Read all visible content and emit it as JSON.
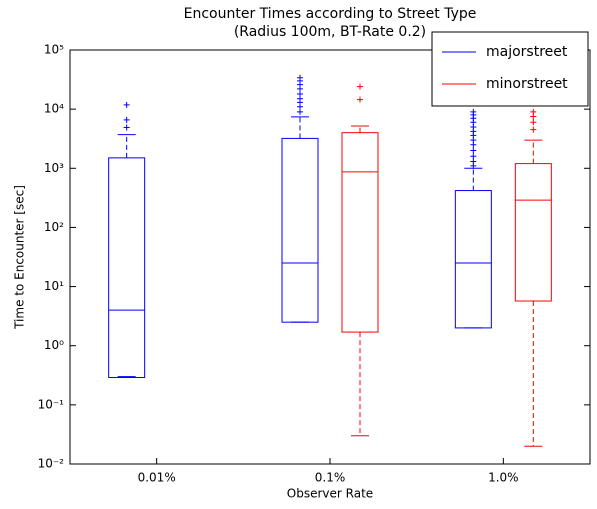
{
  "chart_data": {
    "type": "box",
    "title": "Encounter Times according to Street Type",
    "subtitle": "(Radius 100m, BT-Rate 0.2)",
    "x_label": "Observer Rate",
    "y_label": "Time to Encounter [sec]",
    "log_scale": true,
    "legend": "upper right",
    "categories": [
      "0.01%",
      "0.1%",
      "1.0%"
    ],
    "ylim": [
      0.01,
      100000
    ],
    "yticks": [
      {
        "value": 0.01,
        "label": "10⁻²"
      },
      {
        "value": 0.1,
        "label": "10⁻¹"
      },
      {
        "value": 1,
        "label": "10⁰"
      },
      {
        "value": 10,
        "label": "10¹"
      },
      {
        "value": 100,
        "label": "10²"
      },
      {
        "value": 1000,
        "label": "10³"
      },
      {
        "value": 10000,
        "label": "10⁴"
      },
      {
        "value": 100000,
        "label": "10⁵"
      }
    ],
    "series": [
      {
        "name": "majorstreet",
        "color": "#0000ff",
        "whislo": [
          0.3,
          2.5,
          2.0
        ],
        "q1": [
          0.29,
          2.5,
          2.0
        ],
        "median": [
          4.0,
          25,
          25
        ],
        "q3": [
          1500,
          3200,
          420
        ],
        "whishi": [
          3700,
          7400,
          1000
        ],
        "fliers": [
          [
            4900,
            6600,
            11800
          ],
          [
            9000,
            11000,
            13000,
            15000,
            18000,
            22000,
            26000,
            30000,
            34000
          ],
          [
            1100,
            1300,
            1600,
            2000,
            2500,
            3000,
            3600,
            4200,
            5000,
            6000,
            7000,
            8000,
            9000
          ]
        ]
      },
      {
        "name": "minorstreet",
        "color": "#ff0000",
        "whislo": [
          null,
          0.03,
          0.02
        ],
        "q1": [
          null,
          1.7,
          5.7
        ],
        "median": [
          null,
          870,
          290
        ],
        "q3": [
          null,
          4000,
          1200
        ],
        "whishi": [
          null,
          5200,
          3000
        ],
        "fliers": [
          null,
          [
            14500,
            24000
          ],
          [
            4500,
            6000,
            7500,
            9000
          ]
        ]
      }
    ]
  }
}
